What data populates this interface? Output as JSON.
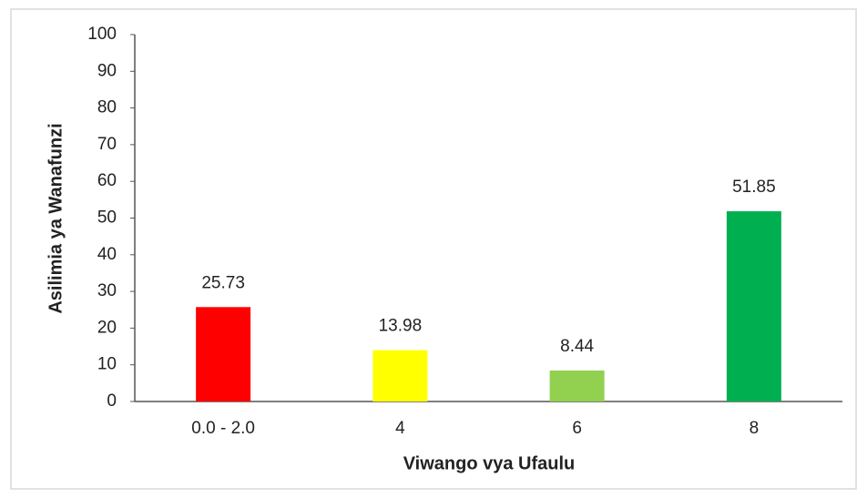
{
  "chart_data": {
    "type": "bar",
    "x_label": "Viwango vya Ufaulu",
    "y_label": "Asilimia ya Wanafunzi",
    "categories": [
      "0.0 - 2.0",
      "4",
      "6",
      "8"
    ],
    "values": [
      25.73,
      13.98,
      8.44,
      51.85
    ],
    "colors": [
      "#ff0000",
      "#ffff00",
      "#92d050",
      "#00b050"
    ],
    "ylim": [
      0,
      100
    ],
    "yticks": [
      0,
      10,
      20,
      30,
      40,
      50,
      60,
      70,
      80,
      90,
      100
    ],
    "grid": false
  }
}
